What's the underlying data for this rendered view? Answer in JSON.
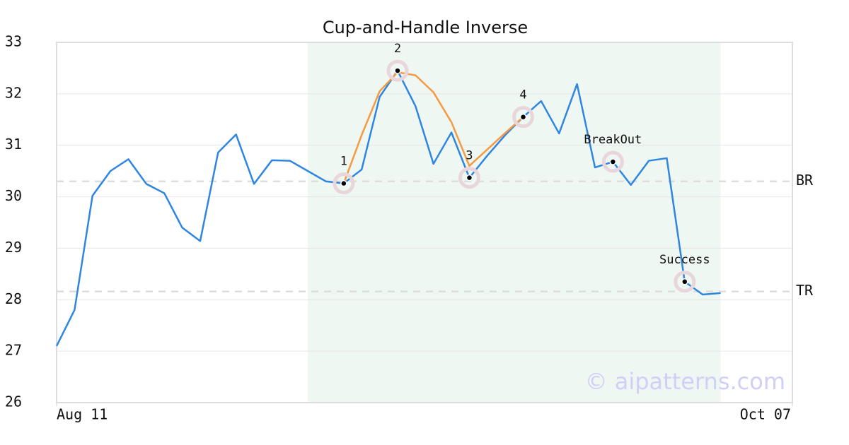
{
  "chart_data": {
    "type": "line",
    "title": "Cup-and-Handle Inverse",
    "x": [
      0,
      1,
      2,
      3,
      4,
      5,
      6,
      7,
      8,
      9,
      10,
      11,
      12,
      13,
      14,
      15,
      16,
      17,
      18,
      19,
      20,
      21,
      22,
      23,
      24,
      25,
      26,
      27,
      28,
      29,
      30,
      31,
      32,
      33,
      34,
      35,
      36,
      37
    ],
    "xlim": [
      0,
      41
    ],
    "xticks": [
      {
        "value": 0,
        "label": "Aug 11"
      },
      {
        "value": 41,
        "label": "Oct 07"
      }
    ],
    "ylim": [
      26,
      33
    ],
    "yticks": [
      26,
      27,
      28,
      29,
      30,
      31,
      32,
      33
    ],
    "grid": true,
    "series": [
      {
        "color": "#2f86e0",
        "values": [
          27.1,
          27.8,
          30.02,
          30.5,
          30.73,
          30.25,
          30.07,
          29.4,
          29.14,
          30.86,
          31.21,
          30.25,
          30.71,
          30.7,
          30.5,
          30.3,
          30.26,
          30.53,
          31.94,
          32.45,
          31.76,
          30.64,
          31.25,
          30.37,
          30.8,
          31.2,
          31.55,
          31.86,
          31.23,
          32.19,
          30.57,
          30.68,
          30.23,
          30.7,
          30.75,
          28.35,
          28.1,
          28.13
        ]
      },
      {
        "color": "#f59a42",
        "values": [
          null,
          null,
          null,
          null,
          null,
          null,
          null,
          null,
          null,
          null,
          null,
          null,
          null,
          null,
          null,
          null,
          30.26,
          31.2,
          32.05,
          32.42,
          32.36,
          32.03,
          31.45,
          30.6,
          30.92,
          31.24,
          31.55,
          null,
          null,
          null,
          null,
          null,
          null,
          null,
          null,
          null,
          null,
          null
        ]
      }
    ],
    "highlight": [
      14,
      37
    ],
    "levels": [
      {
        "label": "BR",
        "value": 30.3
      },
      {
        "label": "TR",
        "value": 28.16
      }
    ],
    "annotations": [
      {
        "label": "1",
        "x": 16,
        "y": 30.26
      },
      {
        "label": "2",
        "x": 19,
        "y": 32.45
      },
      {
        "label": "3",
        "x": 23,
        "y": 30.37
      },
      {
        "label": "4",
        "x": 26,
        "y": 31.55
      },
      {
        "label": "BreakOut",
        "x": 31,
        "y": 30.68
      },
      {
        "label": "Success",
        "x": 35,
        "y": 28.35
      }
    ],
    "watermark": "© aipatterns.com"
  }
}
